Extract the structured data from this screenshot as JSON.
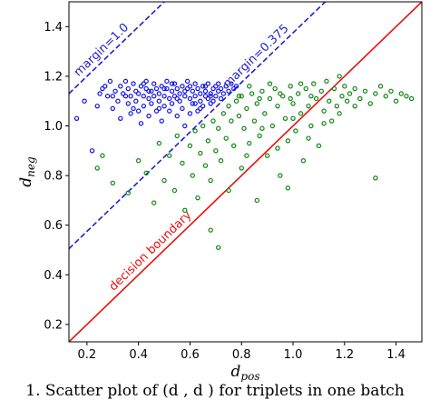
{
  "caption": "1. Scatter plot of (d , d ) for triplets in one batch",
  "chart_data": {
    "type": "scatter",
    "xlabel": "d",
    "xlabel_sub": "pos",
    "ylabel": "d",
    "ylabel_sub": "neg",
    "xlim": [
      0.13,
      1.5
    ],
    "ylim": [
      0.13,
      1.5
    ],
    "xticks": [
      0.2,
      0.4,
      0.6,
      0.8,
      1.0,
      1.2,
      1.4
    ],
    "yticks": [
      0.2,
      0.4,
      0.6,
      0.8,
      1.0,
      1.2,
      1.4
    ],
    "grid": false,
    "lines": [
      {
        "label": "decision boundary",
        "intercept": 0.0,
        "slope": 1,
        "color": "#e8110f",
        "style": "solid"
      },
      {
        "label": "margin=0.375",
        "intercept": 0.375,
        "slope": 1,
        "color": "#1f1fcc",
        "style": "dashed"
      },
      {
        "label": "margin=1.0",
        "intercept": 1.0,
        "slope": 1,
        "color": "#1f1fcc",
        "style": "dashed"
      }
    ],
    "series": [
      {
        "color": "#1515e6",
        "points": [
          [
            0.16,
            1.03
          ],
          [
            0.19,
            1.1
          ],
          [
            0.22,
            0.9
          ],
          [
            0.24,
            1.08
          ],
          [
            0.25,
            1.13
          ],
          [
            0.26,
            1.15
          ],
          [
            0.28,
            1.12
          ],
          [
            0.29,
            1.18
          ],
          [
            0.3,
            1.07
          ],
          [
            0.31,
            1.14
          ],
          [
            0.32,
            1.1
          ],
          [
            0.33,
            1.16
          ],
          [
            0.33,
            1.03
          ],
          [
            0.34,
            1.13
          ],
          [
            0.35,
            1.18
          ],
          [
            0.36,
            1.09
          ],
          [
            0.36,
            1.15
          ],
          [
            0.37,
            1.12
          ],
          [
            0.37,
            1.05
          ],
          [
            0.38,
            1.17
          ],
          [
            0.39,
            1.14
          ],
          [
            0.39,
            1.1
          ],
          [
            0.4,
            1.13
          ],
          [
            0.4,
            1.06
          ],
          [
            0.41,
            1.16
          ],
          [
            0.41,
            1.01
          ],
          [
            0.42,
            1.12
          ],
          [
            0.42,
            1.08
          ],
          [
            0.43,
            1.15
          ],
          [
            0.43,
            1.18
          ],
          [
            0.44,
            1.11
          ],
          [
            0.44,
            1.04
          ],
          [
            0.45,
            1.14
          ],
          [
            0.45,
            1.09
          ],
          [
            0.46,
            1.17
          ],
          [
            0.46,
            1.12
          ],
          [
            0.47,
            1.06
          ],
          [
            0.47,
            1.15
          ],
          [
            0.48,
            1.1
          ],
          [
            0.48,
            1.13
          ],
          [
            0.49,
            1.16
          ],
          [
            0.49,
            1.02
          ],
          [
            0.5,
            1.12
          ],
          [
            0.5,
            1.08
          ],
          [
            0.51,
            1.15
          ],
          [
            0.51,
            1.18
          ],
          [
            0.52,
            1.11
          ],
          [
            0.52,
            1.06
          ],
          [
            0.53,
            1.14
          ],
          [
            0.53,
            1.09
          ],
          [
            0.54,
            1.17
          ],
          [
            0.54,
            1.12
          ],
          [
            0.55,
            1.04
          ],
          [
            0.55,
            1.15
          ],
          [
            0.56,
            1.1
          ],
          [
            0.56,
            1.13
          ],
          [
            0.57,
            1.16
          ],
          [
            0.57,
            1.07
          ],
          [
            0.58,
            1.12
          ],
          [
            0.58,
            1.0
          ],
          [
            0.59,
            1.15
          ],
          [
            0.59,
            1.18
          ],
          [
            0.6,
            1.11
          ],
          [
            0.6,
            1.05
          ],
          [
            0.61,
            1.14
          ],
          [
            0.61,
            1.09
          ],
          [
            0.62,
            1.17
          ],
          [
            0.62,
            1.12
          ],
          [
            0.63,
            1.06
          ],
          [
            0.63,
            1.15
          ],
          [
            0.64,
            1.1
          ],
          [
            0.64,
            1.13
          ],
          [
            0.65,
            1.16
          ],
          [
            0.65,
            1.08
          ],
          [
            0.66,
            1.12
          ],
          [
            0.66,
            1.14
          ],
          [
            0.67,
            1.11
          ],
          [
            0.67,
            1.17
          ],
          [
            0.68,
            1.13
          ],
          [
            0.68,
            1.09
          ],
          [
            0.69,
            1.15
          ],
          [
            0.69,
            1.1
          ],
          [
            0.7,
            1.16
          ],
          [
            0.7,
            1.12
          ],
          [
            0.71,
            1.14
          ],
          [
            0.71,
            1.17
          ],
          [
            0.72,
            1.11
          ],
          [
            0.72,
            1.15
          ],
          [
            0.73,
            1.13
          ],
          [
            0.74,
            1.16
          ],
          [
            0.75,
            1.14
          ],
          [
            0.76,
            1.17
          ],
          [
            0.77,
            1.15
          ],
          [
            0.78,
            1.16
          ],
          [
            0.27,
            1.16
          ],
          [
            0.35,
            1.12
          ],
          [
            0.42,
            1.17
          ],
          [
            0.48,
            1.07
          ],
          [
            0.53,
            1.17
          ],
          [
            0.58,
            1.14
          ],
          [
            0.62,
            1.09
          ],
          [
            0.66,
            1.16
          ],
          [
            0.3,
            1.12
          ],
          [
            0.38,
            1.07
          ],
          [
            0.44,
            1.14
          ],
          [
            0.5,
            1.15
          ],
          [
            0.55,
            1.11
          ],
          [
            0.6,
            1.16
          ],
          [
            0.64,
            1.07
          ],
          [
            0.68,
            1.12
          ]
        ]
      },
      {
        "color": "#118811",
        "points": [
          [
            0.24,
            0.83
          ],
          [
            0.26,
            0.88
          ],
          [
            0.3,
            0.77
          ],
          [
            0.36,
            0.73
          ],
          [
            0.4,
            0.86
          ],
          [
            0.43,
            0.81
          ],
          [
            0.46,
            0.69
          ],
          [
            0.48,
            0.93
          ],
          [
            0.5,
            0.78
          ],
          [
            0.52,
            0.88
          ],
          [
            0.54,
            0.74
          ],
          [
            0.55,
            0.96
          ],
          [
            0.57,
            0.85
          ],
          [
            0.58,
            0.66
          ],
          [
            0.6,
            0.92
          ],
          [
            0.61,
            0.8
          ],
          [
            0.62,
            0.98
          ],
          [
            0.63,
            0.71
          ],
          [
            0.64,
            0.89
          ],
          [
            0.65,
            1.0
          ],
          [
            0.66,
            0.84
          ],
          [
            0.67,
            0.94
          ],
          [
            0.68,
            0.58
          ],
          [
            0.68,
            0.78
          ],
          [
            0.69,
            1.02
          ],
          [
            0.7,
            0.9
          ],
          [
            0.71,
            0.51
          ],
          [
            0.71,
            0.99
          ],
          [
            0.72,
            0.86
          ],
          [
            0.73,
            1.05
          ],
          [
            0.74,
            0.95
          ],
          [
            0.75,
            0.74
          ],
          [
            0.75,
            1.08
          ],
          [
            0.76,
            1.02
          ],
          [
            0.77,
            0.92
          ],
          [
            0.78,
            1.1
          ],
          [
            0.79,
            1.04
          ],
          [
            0.8,
            0.83
          ],
          [
            0.8,
            1.12
          ],
          [
            0.81,
            0.99
          ],
          [
            0.82,
            1.07
          ],
          [
            0.83,
            0.93
          ],
          [
            0.84,
            1.13
          ],
          [
            0.85,
            1.02
          ],
          [
            0.86,
            0.7
          ],
          [
            0.86,
            1.09
          ],
          [
            0.87,
            0.96
          ],
          [
            0.88,
            1.14
          ],
          [
            0.89,
            1.05
          ],
          [
            0.9,
            0.88
          ],
          [
            0.91,
            1.11
          ],
          [
            0.92,
            1.0
          ],
          [
            0.93,
            1.15
          ],
          [
            0.94,
            1.08
          ],
          [
            0.95,
            0.8
          ],
          [
            0.96,
            1.12
          ],
          [
            0.97,
            1.03
          ],
          [
            0.98,
            0.94
          ],
          [
            0.99,
            1.16
          ],
          [
            1.0,
            1.09
          ],
          [
            1.01,
            0.98
          ],
          [
            1.02,
            1.13
          ],
          [
            1.03,
            1.05
          ],
          [
            1.04,
            0.86
          ],
          [
            1.05,
            1.15
          ],
          [
            1.06,
            1.08
          ],
          [
            1.07,
            1.0
          ],
          [
            1.08,
            1.17
          ],
          [
            1.09,
            1.11
          ],
          [
            1.1,
            0.92
          ],
          [
            1.11,
            1.14
          ],
          [
            1.12,
            1.06
          ],
          [
            1.13,
            1.18
          ],
          [
            1.14,
            1.1
          ],
          [
            1.15,
            1.02
          ],
          [
            1.16,
            1.15
          ],
          [
            1.17,
            1.08
          ],
          [
            1.18,
            1.2
          ],
          [
            1.19,
            1.12
          ],
          [
            1.2,
            1.16
          ],
          [
            1.21,
            1.1
          ],
          [
            1.22,
            1.13
          ],
          [
            1.24,
            1.15
          ],
          [
            1.26,
            1.11
          ],
          [
            1.28,
            1.14
          ],
          [
            1.3,
            1.09
          ],
          [
            1.32,
            1.13
          ],
          [
            1.34,
            1.16
          ],
          [
            1.36,
            1.12
          ],
          [
            1.38,
            1.14
          ],
          [
            1.4,
            1.1
          ],
          [
            1.42,
            1.13
          ],
          [
            1.44,
            1.12
          ],
          [
            1.46,
            1.11
          ],
          [
            1.32,
            0.79
          ],
          [
            0.98,
            0.75
          ],
          [
            0.79,
            1.12
          ],
          [
            0.83,
            1.16
          ],
          [
            0.87,
            1.11
          ],
          [
            0.91,
            1.17
          ],
          [
            0.95,
            1.13
          ],
          [
            0.99,
            1.11
          ],
          [
            1.03,
            1.17
          ],
          [
            1.07,
            1.12
          ],
          [
            0.82,
            0.88
          ],
          [
            0.88,
            0.99
          ],
          [
            0.94,
            0.91
          ],
          [
            1.0,
            1.03
          ],
          [
            1.06,
            0.95
          ],
          [
            1.12,
            1.01
          ],
          [
            1.18,
            1.05
          ],
          [
            1.24,
            1.08
          ]
        ]
      }
    ]
  }
}
